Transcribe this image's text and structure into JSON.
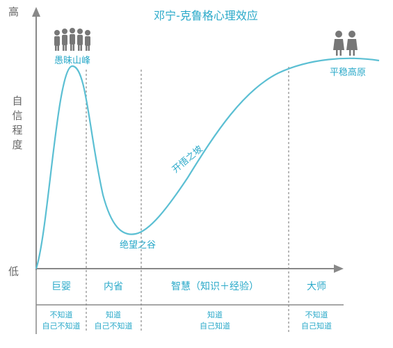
{
  "title": "邓宁-克鲁格心理效应",
  "axis": {
    "y_label_chars": [
      "自",
      "信",
      "程",
      "度"
    ],
    "y_high": "高",
    "y_low": "低"
  },
  "labels": {
    "peak": "愚昧山峰",
    "valley": "绝望之谷",
    "slope": "开悟之坡",
    "plateau": "平稳高原"
  },
  "stages": [
    {
      "name": "巨婴",
      "line1": "不知道",
      "line2": "自己不知道"
    },
    {
      "name": "内省",
      "line1": "知道",
      "line2": "自己不知道"
    },
    {
      "name": "智慧（知识＋经验）",
      "line1": "知道",
      "line2": "自己知道"
    },
    {
      "name": "大师",
      "line1": "不知道",
      "line2": "自己知道"
    }
  ],
  "colors": {
    "curve": "#5bbfd3",
    "text": "#2aa9c9",
    "axis": "#888888",
    "dashed": "#888888",
    "people": "#777777"
  },
  "icons": [
    "crowd-icon",
    "pair-icon"
  ]
}
